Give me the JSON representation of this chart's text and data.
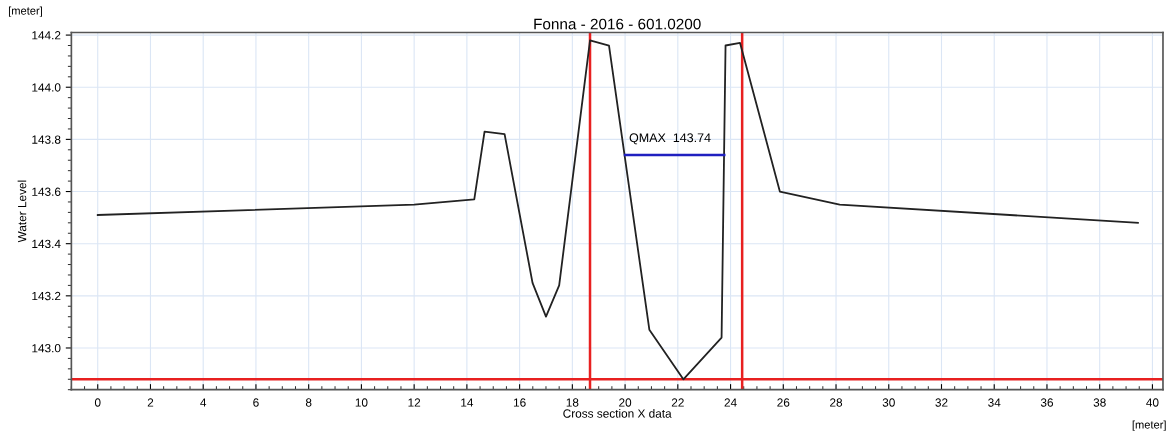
{
  "chart_data": {
    "type": "line",
    "title": "Fonna - 2016 - 601.0200",
    "xlabel": "Cross section X data",
    "ylabel": "Water Level",
    "annotations": [
      "[meter]",
      "[meter]"
    ],
    "series": [
      {
        "color": "#222222",
        "x": [
          0,
          12,
          14.28,
          14.67,
          15.43,
          16.49,
          17.0,
          17.5,
          18.67,
          19.39,
          20.92,
          22.21,
          23.66,
          23.81,
          24.36,
          25.87,
          28.14,
          39.45
        ],
        "values": [
          143.51,
          143.55,
          143.57,
          143.83,
          143.82,
          143.25,
          143.12,
          143.24,
          144.18,
          144.16,
          143.07,
          142.88,
          143.04,
          144.16,
          144.17,
          143.6,
          143.55,
          143.48
        ]
      },
      {
        "name": "QMAX  143.74",
        "color": "#2020c0",
        "x": [
          20.0,
          23.76
        ],
        "values": [
          143.74,
          143.74
        ]
      }
    ],
    "ref_lines": [
      {
        "axis": "x",
        "value": 18.67,
        "color": "#e82020"
      },
      {
        "axis": "x",
        "value": 24.44,
        "color": "#e82020"
      },
      {
        "axis": "y",
        "value": 142.88,
        "color": "#e82020"
      }
    ],
    "xlim": [
      -1,
      40.4
    ],
    "xticks": [
      0,
      2,
      4,
      6,
      8,
      10,
      12,
      14,
      16,
      18,
      20,
      22,
      24,
      26,
      28,
      30,
      32,
      34,
      36,
      38,
      40
    ],
    "ylim": [
      142.84,
      144.21
    ],
    "yticks": [
      {
        "value": 143,
        "label": "143.0"
      },
      143.2,
      143.4,
      143.6,
      143.8,
      {
        "value": 144,
        "label": "144.0"
      },
      144.2
    ],
    "grid": true,
    "legend": false,
    "marker": "none",
    "line_style": "solid"
  }
}
